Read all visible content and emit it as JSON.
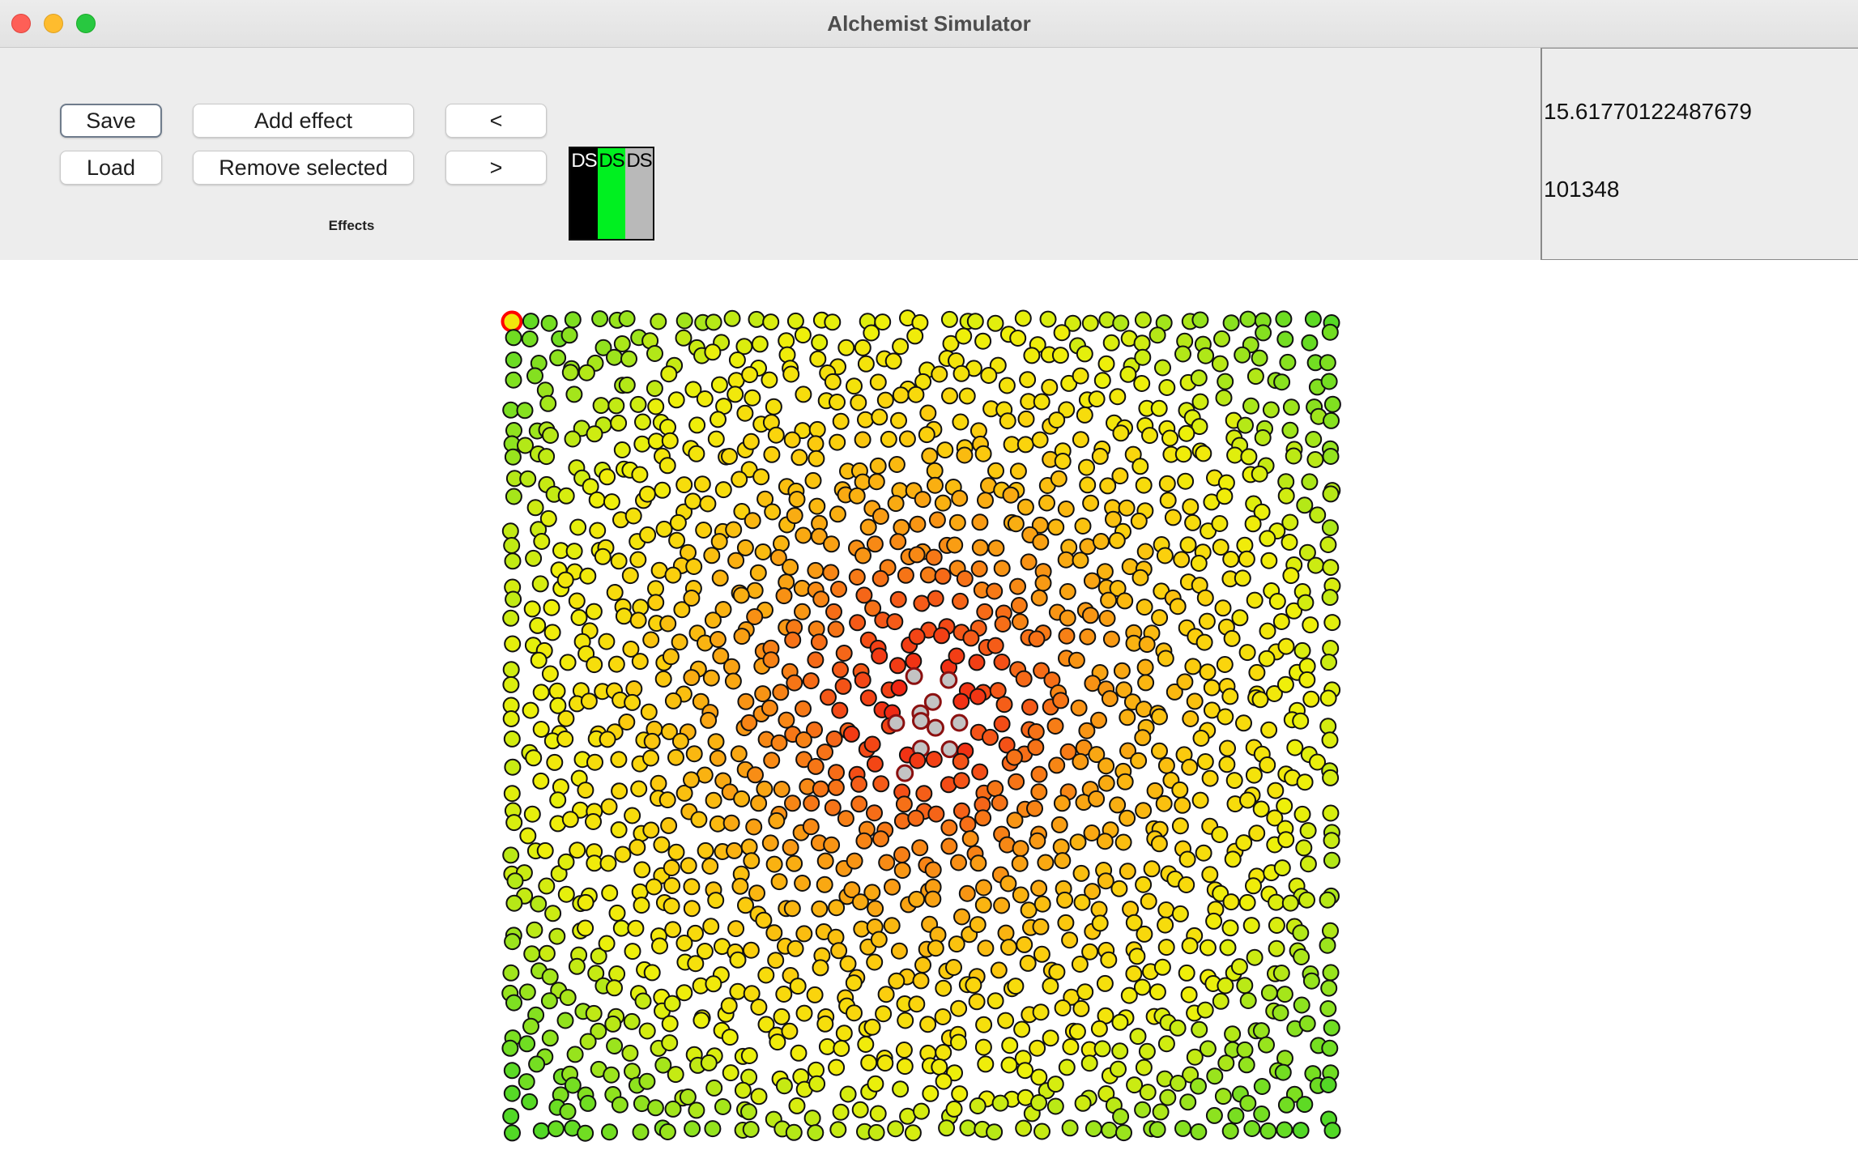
{
  "window": {
    "title": "Alchemist Simulator"
  },
  "toolbar": {
    "save_label": "Save",
    "load_label": "Load",
    "add_effect_label": "Add effect",
    "remove_selected_label": "Remove selected",
    "prev_label": "<",
    "next_label": ">",
    "effects_label": "Effects"
  },
  "color_strip": [
    {
      "label": "DS",
      "color": "#000000"
    },
    {
      "label": "DS",
      "color": "#00f020"
    },
    {
      "label": "DS",
      "color": "#b9b9b9"
    }
  ],
  "info": {
    "time": "15.61770122487679",
    "steps": "101348"
  },
  "simulation": {
    "grid_columns": 41,
    "grid_rows": 41,
    "source_node": {
      "column": 20,
      "row": 19
    },
    "selected_node": {
      "column": 0,
      "row": 0
    },
    "source_color": "#c3c3c3",
    "gradient_colors": [
      "#ee1010",
      "#f56018",
      "#f9a313",
      "#fbd20d",
      "#eef00a",
      "#9ae41d",
      "#52d826"
    ],
    "selected_outline_color": "#ff0000"
  }
}
